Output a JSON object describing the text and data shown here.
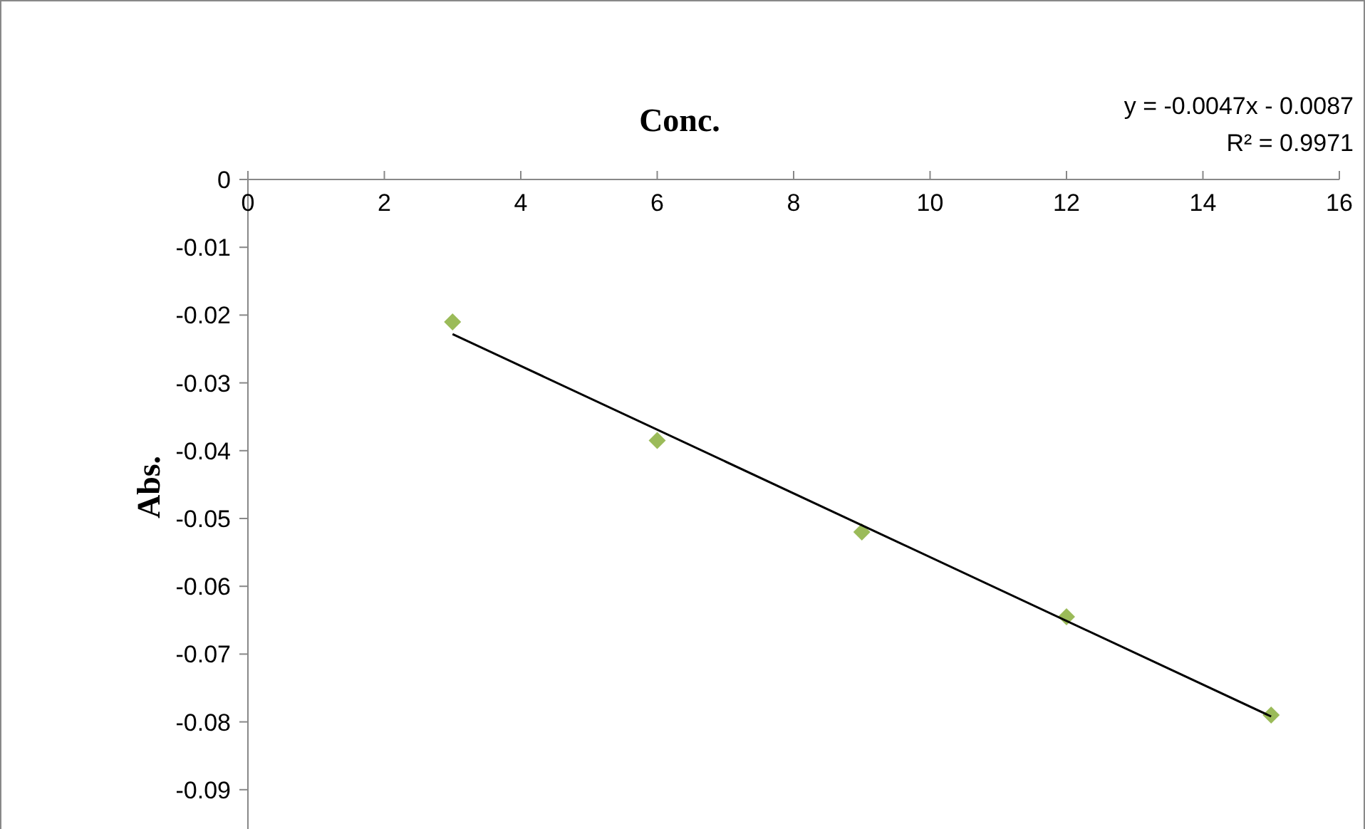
{
  "chart_data": {
    "type": "scatter",
    "xlabel": "Conc.",
    "ylabel": "Abs.",
    "xlim": [
      0,
      16
    ],
    "xticks": [
      0,
      2,
      4,
      6,
      8,
      10,
      12,
      14,
      16
    ],
    "ylim": [
      -0.1,
      0
    ],
    "yticks": [
      0,
      -0.01,
      -0.02,
      -0.03,
      -0.04,
      -0.05,
      -0.06,
      -0.07,
      -0.08,
      -0.09
    ],
    "grid": false,
    "series": [
      {
        "color": "#9bbb59",
        "marker": "diamond",
        "x": [
          3,
          6,
          9,
          12,
          15
        ],
        "values": [
          -0.021,
          -0.0385,
          -0.052,
          -0.0645,
          -0.079
        ]
      },
      {
        "type": "line",
        "color": "#000000",
        "x": [
          3,
          15
        ],
        "values": [
          -0.0228,
          -0.0792
        ],
        "line_style": "solid",
        "marker": "none"
      }
    ],
    "annotations": [
      "y = -0.0047x - 0.0087",
      "R² = 0.9971"
    ]
  }
}
